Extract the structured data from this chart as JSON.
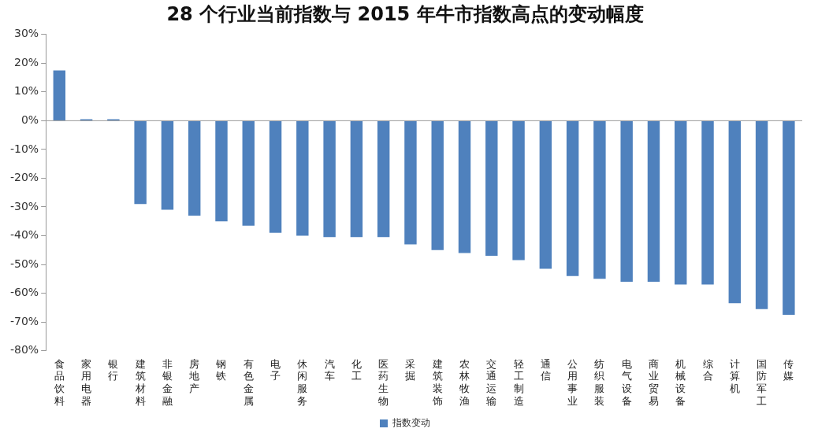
{
  "chart_data": {
    "type": "bar",
    "title": "28 个行业当前指数与 2015 年牛市指数高点的变动幅度",
    "categories": [
      "食品饮料",
      "家用电器",
      "银行",
      "建筑材料",
      "非银金融",
      "房地产",
      "钢铁",
      "有色金属",
      "电子",
      "休闲服务",
      "汽车",
      "化工",
      "医药生物",
      "采掘",
      "建筑装饰",
      "农林牧渔",
      "交通运输",
      "轻工制造",
      "通信",
      "公用事业",
      "纺织服装",
      "电气设备",
      "商业贸易",
      "机械设备",
      "综合",
      "计算机",
      "国防军工",
      "传媒"
    ],
    "series": [
      {
        "name": "指数变动",
        "color": "#4f81bd",
        "values": [
          17.5,
          0.5,
          0.5,
          -29,
          -31,
          -33,
          -35,
          -36.5,
          -39,
          -40,
          -40.5,
          -40.5,
          -40.5,
          -43,
          -45,
          -46,
          -47,
          -48.5,
          -51.5,
          -54,
          -55,
          -56,
          -56,
          -57,
          -57,
          -63.5,
          -65.5,
          -67.5
        ]
      }
    ],
    "ylim": [
      -80,
      30
    ],
    "yticks": [
      {
        "value": -80,
        "label": "-80%"
      },
      {
        "value": -70,
        "label": "-70%"
      },
      {
        "value": -60,
        "label": "-60%"
      },
      {
        "value": -50,
        "label": "-50%"
      },
      {
        "value": -40,
        "label": "-40%"
      },
      {
        "value": -30,
        "label": "-30%"
      },
      {
        "value": -20,
        "label": "-20%"
      },
      {
        "value": -10,
        "label": "-10%"
      },
      {
        "value": 0,
        "label": "0%"
      },
      {
        "value": 10,
        "label": "10%"
      },
      {
        "value": 20,
        "label": "20%"
      },
      {
        "value": 30,
        "label": "30%"
      }
    ],
    "legend": "bottom"
  }
}
